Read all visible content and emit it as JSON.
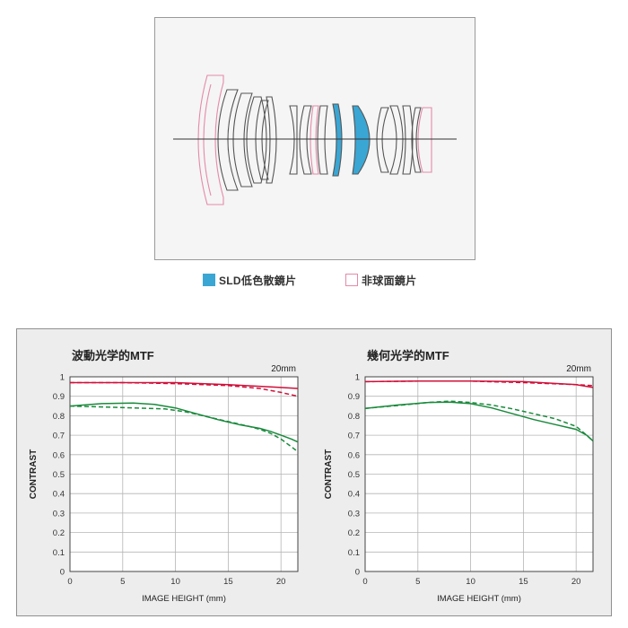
{
  "lens_diagram": {
    "colors": {
      "outline": "#555555",
      "axis": "#333333",
      "sld_fill": "#3aa6d4",
      "asph_stroke": "#e48aa8"
    }
  },
  "legend": {
    "sld": {
      "label": "SLD低色散鏡片",
      "color": "#3aa6d4"
    },
    "aspherical": {
      "label": "非球面鏡片",
      "color": "#e48aa8"
    }
  },
  "chart_data": [
    {
      "type": "line",
      "title": "波動光学的MTF",
      "corner_label": "20mm",
      "xlabel": "IMAGE HEIGHT (mm)",
      "ylabel": "CONTRAST",
      "xlim": [
        0,
        21.6
      ],
      "ylim": [
        0,
        1
      ],
      "x_ticks": [
        0,
        5,
        10,
        15,
        20
      ],
      "y_ticks": [
        0,
        0.1,
        0.2,
        0.3,
        0.4,
        0.5,
        0.6,
        0.7,
        0.8,
        0.9,
        1
      ],
      "y_tick_labels": [
        "0",
        "0.1",
        "0.2",
        "0.3",
        "0.4",
        "0.5",
        "0.6",
        "0.7",
        "0.8",
        "0.9",
        "1"
      ],
      "grid": true,
      "series": [
        {
          "color": "#d0103a",
          "dash": false,
          "x": [
            0,
            5,
            10,
            15,
            20,
            21.6
          ],
          "values": [
            0.97,
            0.97,
            0.97,
            0.96,
            0.945,
            0.94
          ]
        },
        {
          "color": "#d0103a",
          "dash": true,
          "x": [
            0,
            5,
            10,
            15,
            18,
            20,
            21.6
          ],
          "values": [
            0.97,
            0.97,
            0.965,
            0.955,
            0.94,
            0.92,
            0.9
          ]
        },
        {
          "color": "#1a8a3c",
          "dash": false,
          "x": [
            0,
            3,
            6,
            8,
            10,
            12,
            14,
            16,
            18,
            19,
            20,
            21,
            21.6
          ],
          "values": [
            0.85,
            0.862,
            0.865,
            0.858,
            0.84,
            0.81,
            0.78,
            0.755,
            0.735,
            0.72,
            0.7,
            0.68,
            0.665
          ]
        },
        {
          "color": "#1a8a3c",
          "dash": true,
          "x": [
            0,
            3,
            6,
            9,
            11,
            13,
            15,
            17,
            18,
            19,
            20,
            21,
            21.6
          ],
          "values": [
            0.85,
            0.845,
            0.84,
            0.835,
            0.82,
            0.795,
            0.77,
            0.745,
            0.73,
            0.71,
            0.68,
            0.64,
            0.615
          ]
        }
      ]
    },
    {
      "type": "line",
      "title": "幾何光学的MTF",
      "corner_label": "20mm",
      "xlabel": "IMAGE HEIGHT (mm)",
      "ylabel": "CONTRAST",
      "xlim": [
        0,
        21.6
      ],
      "ylim": [
        0,
        1
      ],
      "x_ticks": [
        0,
        5,
        10,
        15,
        20
      ],
      "y_ticks": [
        0,
        0.1,
        0.2,
        0.3,
        0.4,
        0.5,
        0.6,
        0.7,
        0.8,
        0.9,
        1
      ],
      "y_tick_labels": [
        "0",
        "0.1",
        "0.2",
        "0.3",
        "0.4",
        "0.5",
        "0.6",
        "0.7",
        "0.8",
        "0.9",
        "1"
      ],
      "grid": true,
      "series": [
        {
          "color": "#d0103a",
          "dash": false,
          "x": [
            0,
            5,
            10,
            15,
            20,
            21.6
          ],
          "values": [
            0.975,
            0.978,
            0.978,
            0.975,
            0.96,
            0.945
          ]
        },
        {
          "color": "#d0103a",
          "dash": true,
          "x": [
            0,
            5,
            10,
            15,
            20,
            21.6
          ],
          "values": [
            0.975,
            0.978,
            0.978,
            0.97,
            0.96,
            0.955
          ]
        },
        {
          "color": "#1a8a3c",
          "dash": false,
          "x": [
            0,
            3,
            6,
            8,
            10,
            12,
            14,
            16,
            18,
            20,
            21,
            21.6
          ],
          "values": [
            0.838,
            0.855,
            0.868,
            0.87,
            0.862,
            0.84,
            0.81,
            0.78,
            0.755,
            0.73,
            0.7,
            0.67
          ]
        },
        {
          "color": "#1a8a3c",
          "dash": true,
          "x": [
            0,
            3,
            6,
            8,
            10,
            12,
            14,
            16,
            18,
            20,
            21,
            21.6
          ],
          "values": [
            0.838,
            0.852,
            0.868,
            0.875,
            0.868,
            0.855,
            0.835,
            0.81,
            0.785,
            0.745,
            0.7,
            0.67
          ]
        }
      ]
    }
  ]
}
